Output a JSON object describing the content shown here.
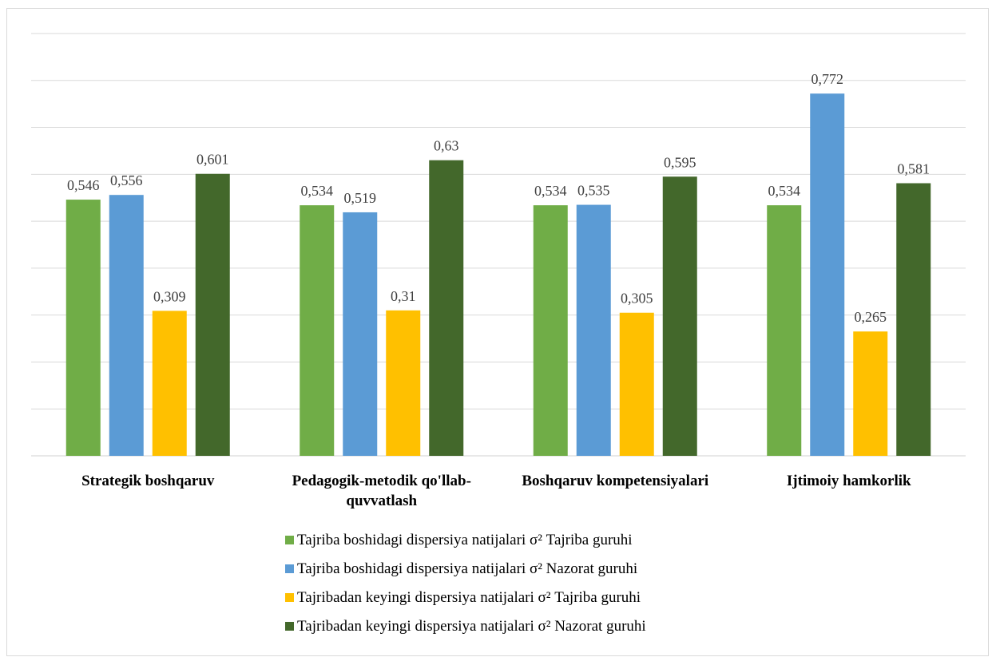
{
  "chart_data": {
    "type": "bar",
    "title": "",
    "xlabel": "",
    "ylabel": "",
    "ylim": [
      0,
      0.9
    ],
    "grid": true,
    "legend_placement": "bottom",
    "categories": [
      [
        "Strategik boshqaruv"
      ],
      [
        "Pedagogik-metodik qo'llab-",
        "quvvatlash"
      ],
      [
        "Boshqaruv kompetensiyalari"
      ],
      [
        "Ijtimoiy hamkorlik"
      ]
    ],
    "series": [
      {
        "name": "Tajriba boshidagi dispersiya natijalari σ² Tajriba guruhi",
        "color": "#70ad47",
        "values": [
          0.546,
          0.534,
          0.534,
          0.534
        ],
        "labels": [
          "0,546",
          "0,534",
          "0,534",
          "0,534"
        ]
      },
      {
        "name": "Tajriba boshidagi dispersiya natijalari σ² Nazorat guruhi",
        "color": "#5b9bd5",
        "values": [
          0.556,
          0.519,
          0.535,
          0.772
        ],
        "labels": [
          "0,556",
          "0,519",
          "0,535",
          "0,772"
        ]
      },
      {
        "name": "Tajribadan keyingi dispersiya natijalari σ² Tajriba guruhi",
        "color": "#ffc000",
        "values": [
          0.309,
          0.31,
          0.305,
          0.265
        ],
        "labels": [
          "0,309",
          "0,31",
          "0,305",
          "0,265"
        ]
      },
      {
        "name": "Tajribadan keyingi dispersiya natijalari σ² Nazorat guruhi",
        "color": "#43682b",
        "values": [
          0.601,
          0.63,
          0.595,
          0.581
        ],
        "labels": [
          "0,601",
          "0,63",
          "0,595",
          "0,581"
        ]
      }
    ]
  }
}
